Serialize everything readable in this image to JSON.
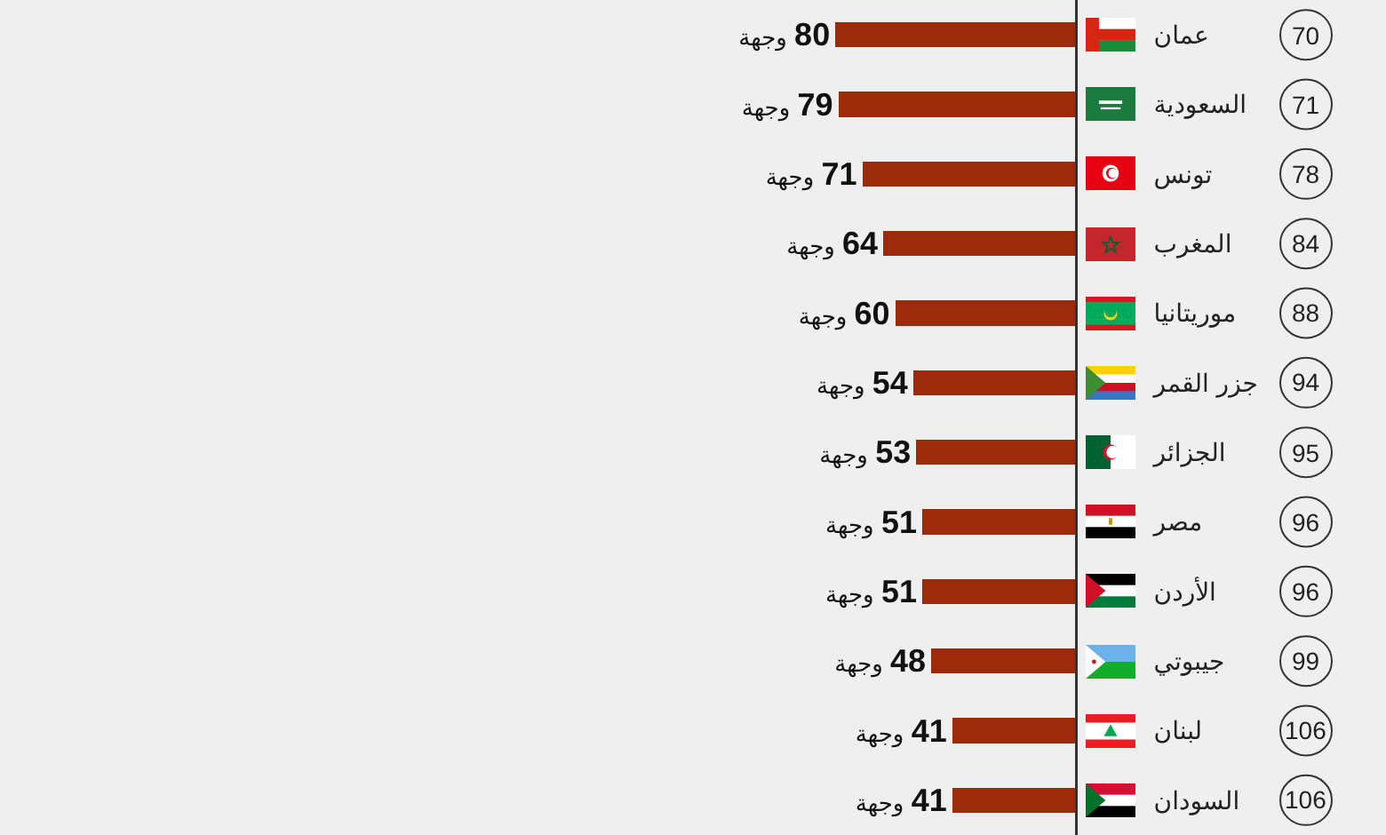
{
  "chart_data": {
    "type": "bar",
    "orientation": "horizontal",
    "categories": [
      "عمان",
      "السعودية",
      "تونس",
      "المغرب",
      "موريتانيا",
      "جزر القمر",
      "الجزائر",
      "مصر",
      "الأردن",
      "جيبوتي",
      "لبنان",
      "السودان"
    ],
    "values": [
      80,
      79,
      71,
      64,
      60,
      54,
      53,
      51,
      51,
      48,
      41,
      41
    ],
    "value_labels": [
      "80 وجهة",
      "79 وجهة",
      "71 وجهة",
      "64 وجهة",
      "60 وجهة",
      "54 وجهة",
      "53 وجهة",
      "51 وجهة",
      "51 وجهة",
      "48 وجهة",
      "41 وجهة",
      "41 وجهة"
    ],
    "color": "#9c2b0b",
    "tick_labels": "y",
    "annotations": [
      "70",
      "71",
      "78",
      "84",
      "88",
      "94",
      "95",
      "96",
      "96",
      "99",
      "106",
      "106"
    ]
  }
}
